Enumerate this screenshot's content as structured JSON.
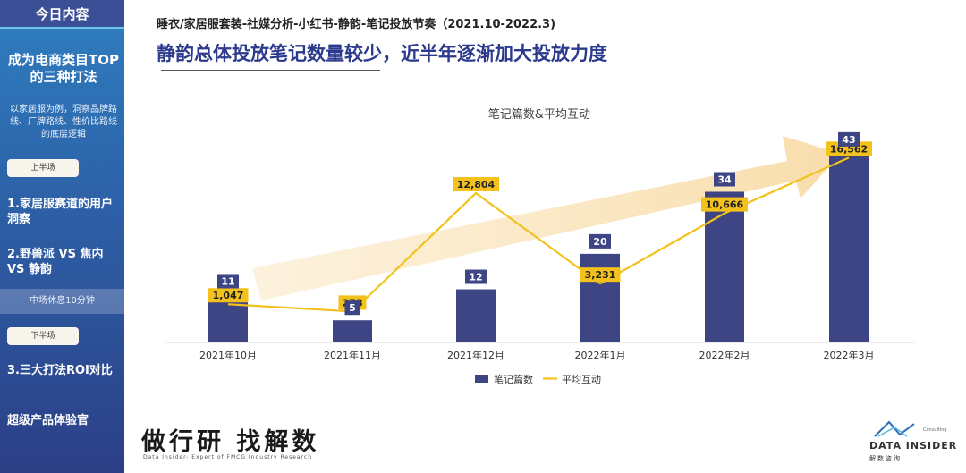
{
  "sidebar": {
    "header": "今日内容",
    "title": "成为电商类目TOP的三种打法",
    "description": "以家居服为例，洞察品牌路线、厂牌路线、性价比路线的底层逻辑",
    "first_half": "上半场",
    "item1": "1.家居服赛道的用户洞察",
    "item2": "2.野兽派 VS 焦内 VS 静韵",
    "break": "中场休息10分钟",
    "second_half": "下半场",
    "item3": "3.三大打法ROI对比",
    "item4": "超级产品体验官"
  },
  "header": {
    "subtitle": "睡衣/家居服套装-社媒分析-小红书-静韵-笔记投放节奏（2021.10-2022.3)",
    "title": "静韵总体投放笔记数量较少，近半年逐渐加大投放力度"
  },
  "chart_data": {
    "type": "bar+line",
    "title": "笔记篇数&平均互动",
    "categories": [
      "2021年10月",
      "2021年11月",
      "2021年12月",
      "2022年1月",
      "2022年2月",
      "2022年3月"
    ],
    "series": [
      {
        "name": "笔记篇数",
        "type": "bar",
        "values": [
          11,
          5,
          12,
          20,
          34,
          43
        ],
        "labels": [
          "11",
          "5",
          "12",
          "20",
          "34",
          "43"
        ],
        "color": "#3e4584"
      },
      {
        "name": "平均互动",
        "type": "line",
        "values": [
          1047,
          278,
          12804,
          3231,
          10666,
          16562
        ],
        "labels": [
          "1,047",
          "278",
          "12,804",
          "3,231",
          "10,666",
          "16,562"
        ],
        "color": "#f2c11b"
      }
    ],
    "bar_ylim": [
      0,
      46
    ],
    "line_ylim": [
      -3000,
      20000
    ],
    "legend_position": "bottom"
  },
  "footer": {
    "brand_left": "做行研 找解数",
    "brand_left_sub": "Data Insider- Expert of FMCG Industry Research",
    "brand_right": "DATA INSIDER",
    "brand_right_tag": "Consulting",
    "brand_right_cn": "解数咨询"
  }
}
